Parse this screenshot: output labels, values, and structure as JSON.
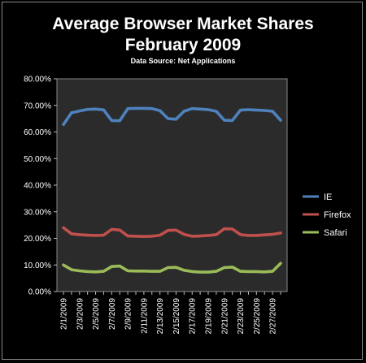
{
  "chart_data": {
    "type": "line",
    "title": "Average Browser Market Shares",
    "subtitle": "February 2009",
    "source": "Data Source: Net Applications",
    "ylim": [
      0,
      80
    ],
    "yticks": [
      "0.00%",
      "10.00%",
      "20.00%",
      "30.00%",
      "40.00%",
      "50.00%",
      "60.00%",
      "70.00%",
      "80.00%"
    ],
    "x": [
      "2/1/2009",
      "2/2/2009",
      "2/3/2009",
      "2/4/2009",
      "2/5/2009",
      "2/6/2009",
      "2/7/2009",
      "2/8/2009",
      "2/9/2009",
      "2/10/2009",
      "2/11/2009",
      "2/12/2009",
      "2/13/2009",
      "2/14/2009",
      "2/15/2009",
      "2/16/2009",
      "2/17/2009",
      "2/18/2009",
      "2/19/2009",
      "2/20/2009",
      "2/21/2009",
      "2/22/2009",
      "2/23/2009",
      "2/24/2009",
      "2/25/2009",
      "2/26/2009",
      "2/27/2009",
      "2/28/2009"
    ],
    "xtick_labels": [
      "2/1/2009",
      "2/3/2009",
      "2/5/2009",
      "2/7/2009",
      "2/9/2009",
      "2/11/2009",
      "2/13/2009",
      "2/15/2009",
      "2/17/2009",
      "2/19/2009",
      "2/21/2009",
      "2/23/2009",
      "2/25/2009",
      "2/27/2009"
    ],
    "grid": false,
    "legend_position": "right",
    "plot_background": "#2b2b2b",
    "series": [
      {
        "name": "IE",
        "color": "#4f81bd",
        "values": [
          62.8,
          67.2,
          67.9,
          68.5,
          68.6,
          68.3,
          64.3,
          64.2,
          68.8,
          68.9,
          68.9,
          68.8,
          68.0,
          65.0,
          64.8,
          67.8,
          68.8,
          68.6,
          68.4,
          67.8,
          64.4,
          64.3,
          68.2,
          68.4,
          68.2,
          68.1,
          67.8,
          64.4
        ]
      },
      {
        "name": "Firefox",
        "color": "#c0504d",
        "values": [
          24.0,
          21.7,
          21.4,
          21.2,
          21.1,
          21.2,
          23.4,
          23.1,
          20.9,
          20.8,
          20.7,
          20.8,
          21.2,
          23.0,
          23.1,
          21.5,
          20.8,
          20.9,
          21.1,
          21.4,
          23.6,
          23.5,
          21.4,
          21.1,
          21.1,
          21.3,
          21.5,
          22.0
        ]
      },
      {
        "name": "Safari",
        "color": "#9bbb59",
        "values": [
          10.0,
          8.2,
          7.8,
          7.5,
          7.4,
          7.6,
          9.4,
          9.6,
          7.8,
          7.7,
          7.7,
          7.6,
          7.6,
          9.0,
          9.1,
          8.0,
          7.5,
          7.3,
          7.3,
          7.6,
          9.0,
          9.2,
          7.6,
          7.5,
          7.5,
          7.4,
          7.6,
          10.6
        ]
      }
    ]
  }
}
